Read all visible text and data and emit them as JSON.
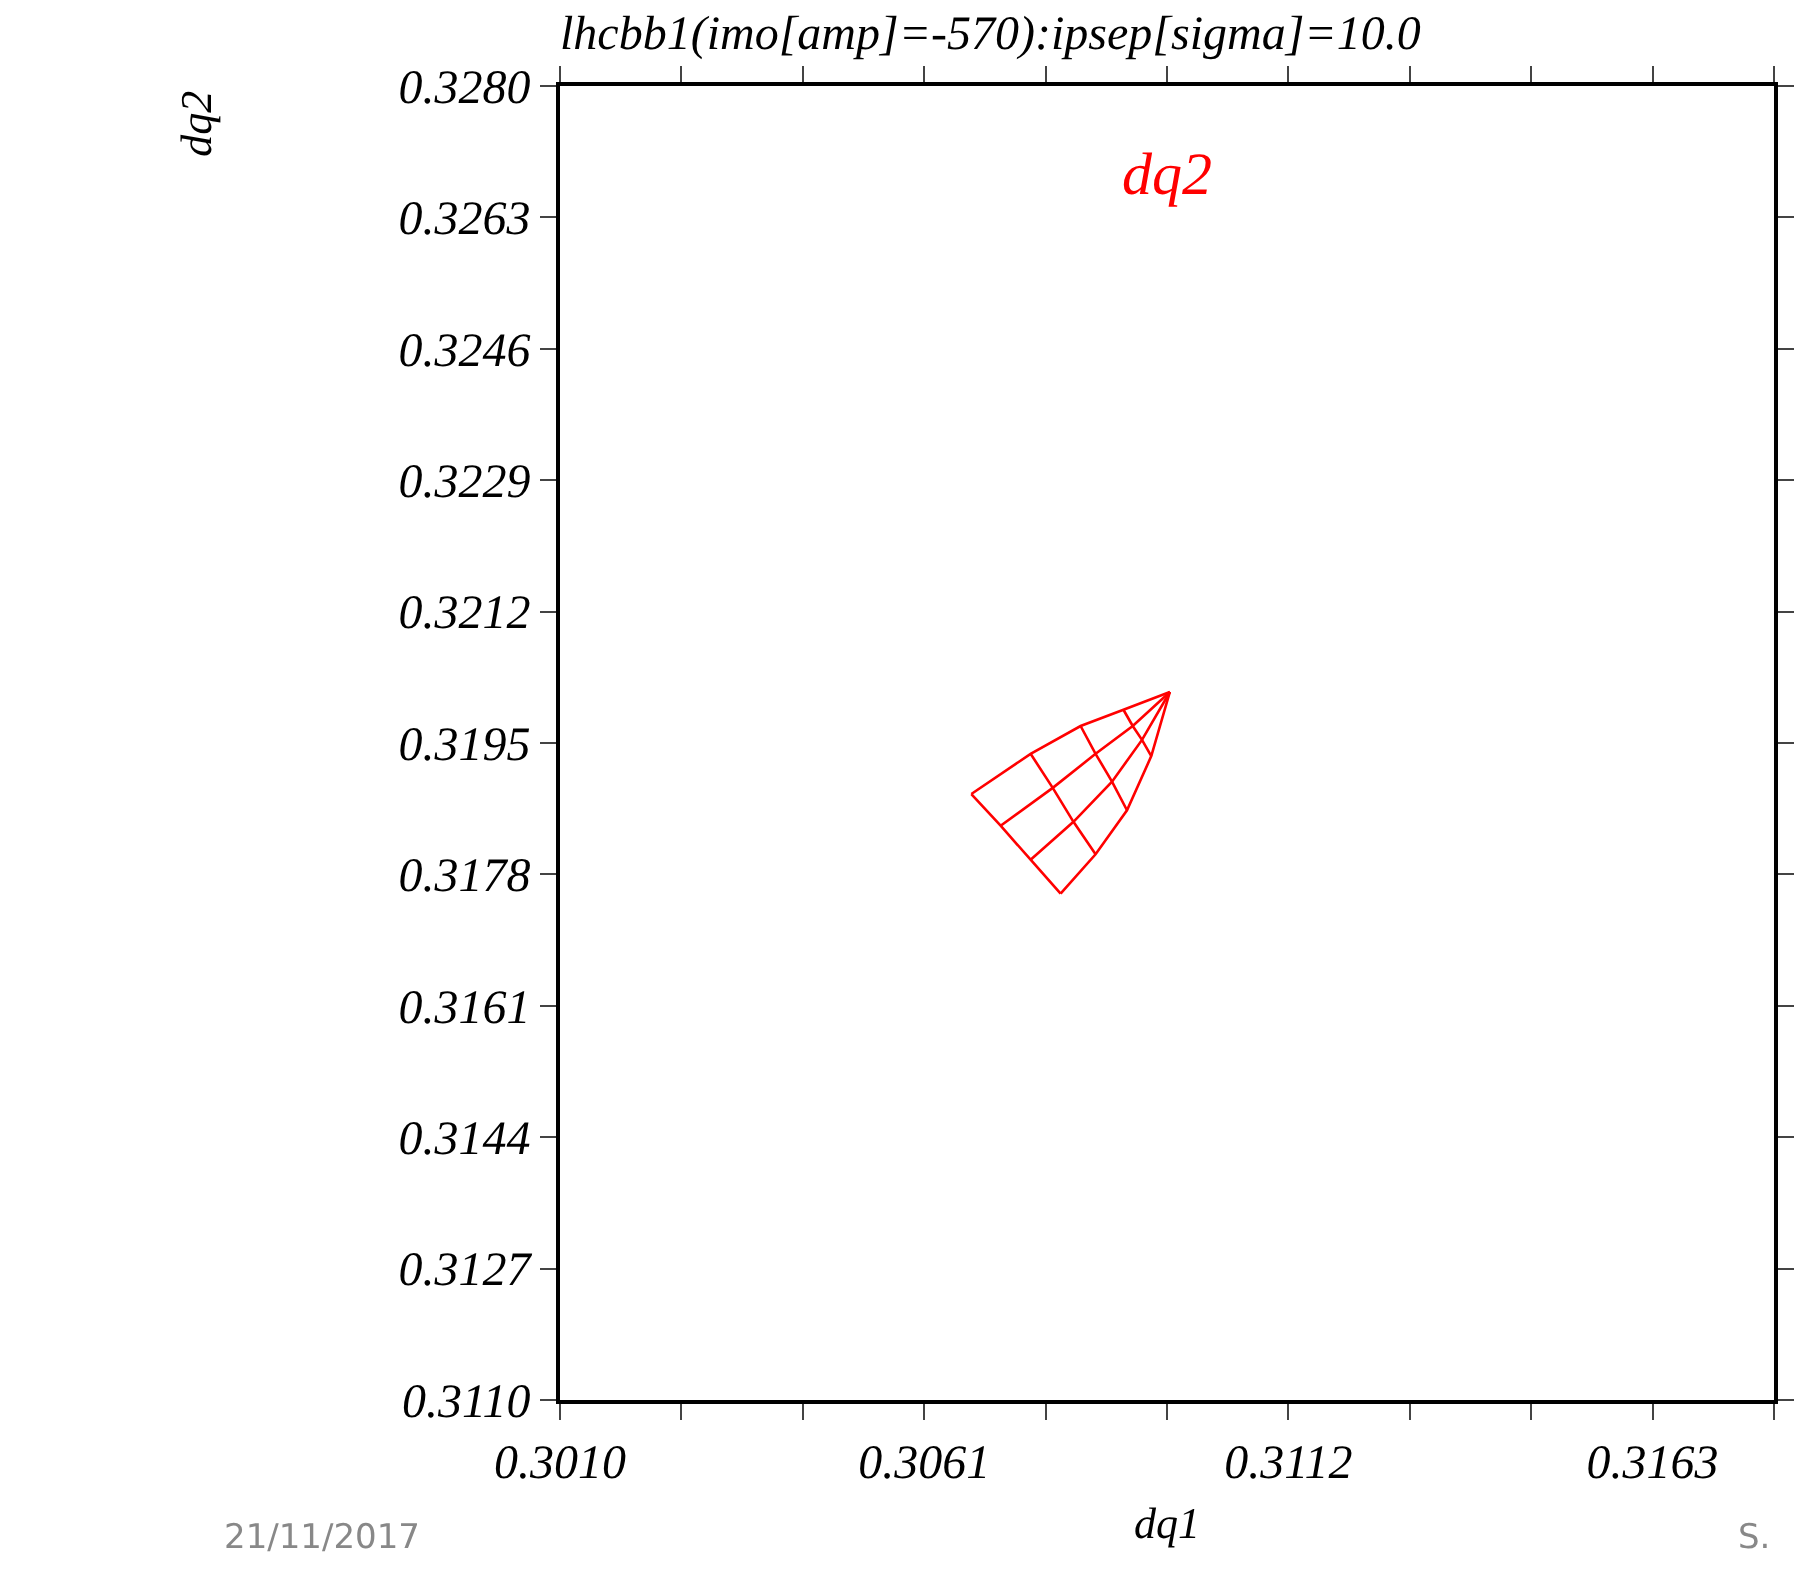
{
  "chart_data": {
    "type": "line",
    "title": "lhcbb1(imo[amp]=-570):ipsep[sigma]=10.0",
    "xlabel": "dq1",
    "ylabel": "dq2",
    "xlim": [
      0.301,
      0.318
    ],
    "ylim": [
      0.311,
      0.328
    ],
    "xticks": [
      {
        "value": 0.301,
        "label": "0.3010"
      },
      {
        "value": 0.3027,
        "label": null
      },
      {
        "value": 0.3044,
        "label": null
      },
      0.3061,
      {
        "value": 0.3078,
        "label": null
      },
      {
        "value": 0.3095,
        "label": null
      },
      0.3112,
      {
        "value": 0.3129,
        "label": null
      },
      {
        "value": 0.3146,
        "label": null
      },
      0.3163,
      {
        "value": 0.318,
        "label": null
      }
    ],
    "yticks": [
      {
        "value": 0.311,
        "label": "0.3110"
      },
      0.3127,
      0.3144,
      0.3161,
      0.3178,
      0.3195,
      0.3212,
      0.3229,
      0.3246,
      0.3263,
      {
        "value": 0.328,
        "label": "0.3280"
      }
    ],
    "marker": "none",
    "line_style": "solid",
    "annotations": [
      "dq2",
      "21/11/2017",
      "S."
    ],
    "series": [
      {
        "color": "#ff0000",
        "x": [
          0.30954,
          0.30889,
          0.30829,
          0.30759,
          0.30676
        ],
        "values": [
          0.32016,
          0.31993,
          0.31972,
          0.31936,
          0.31884
        ]
      },
      {
        "color": "#ff0000",
        "x": [
          0.30954,
          0.30902,
          0.3085,
          0.3079,
          0.30717
        ],
        "values": [
          0.32016,
          0.31972,
          0.31936,
          0.31892,
          0.31843
        ]
      },
      {
        "color": "#ff0000",
        "x": [
          0.30954,
          0.30915,
          0.30873,
          0.30819,
          0.30759
        ],
        "values": [
          0.32016,
          0.31954,
          0.319,
          0.31848,
          0.31799
        ]
      },
      {
        "color": "#ff0000",
        "x": [
          0.30954,
          0.30928,
          0.30894,
          0.3085,
          0.30801
        ],
        "values": [
          0.32016,
          0.31933,
          0.31863,
          0.31806,
          0.31755
        ]
      },
      {
        "color": "#ff0000",
        "x": [
          0.30889,
          0.30902,
          0.30915,
          0.30928
        ],
        "values": [
          0.31993,
          0.31972,
          0.31954,
          0.31933
        ]
      },
      {
        "color": "#ff0000",
        "x": [
          0.30829,
          0.3085,
          0.30873,
          0.30894
        ],
        "values": [
          0.31972,
          0.31936,
          0.319,
          0.31863
        ]
      },
      {
        "color": "#ff0000",
        "x": [
          0.30759,
          0.3079,
          0.30819,
          0.3085
        ],
        "values": [
          0.31936,
          0.31892,
          0.31848,
          0.31806
        ]
      },
      {
        "color": "#ff0000",
        "x": [
          0.30676,
          0.30717,
          0.30759,
          0.30801
        ],
        "values": [
          0.31884,
          0.31843,
          0.31799,
          0.31755
        ]
      }
    ]
  }
}
